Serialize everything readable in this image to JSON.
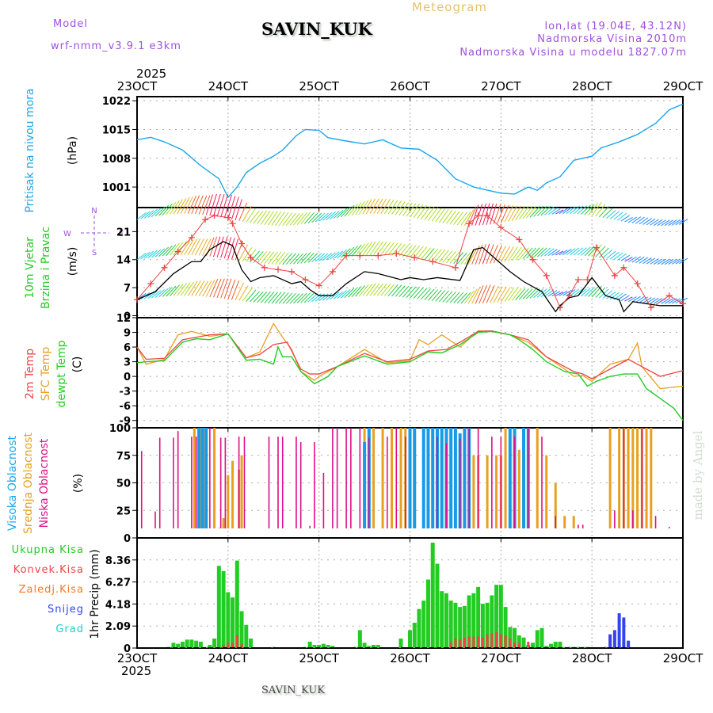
{
  "header": {
    "model_label": "Model",
    "model_name": "wrf-nmm_v3.9.1  e3km",
    "station": "SAVIN_KUK",
    "product": "Meteogram",
    "coords": "lon,lat (19.04E, 43.12N)",
    "elevation": "Nadmorska Visina 2010m",
    "model_elevation": "Nadmorska Visina u modelu 1827.07m",
    "year": "2025"
  },
  "footer": {
    "station": "SAVIN_KUK",
    "credit": "made by Angel"
  },
  "colors": {
    "pressure": "#1aa6ee",
    "temp2m": "#ee4444",
    "sfc": "#e8a020",
    "dewpt": "#22cc22",
    "purple": "#a050e0",
    "high_cloud": "#1a9ae6",
    "mid_cloud": "#e8a020",
    "low_cloud": "#dd1188",
    "rain": "#22cc22",
    "convective": "#ee4444",
    "freezing": "#ff7722",
    "snow": "#3344ee",
    "hail": "#22cccc"
  },
  "chart_data": [
    {
      "type": "line",
      "name": "pressure",
      "title": "Pritisak na nivou mora",
      "ylabel": "(hPa)",
      "x_ticks": [
        "23OCT",
        "24OCT",
        "25OCT",
        "26OCT",
        "27OCT",
        "28OCT",
        "29OCT"
      ],
      "xlim_days": [
        0,
        6
      ],
      "ylim": [
        996,
        1023
      ],
      "y_ticks": [
        1001,
        1008,
        1015,
        1022
      ],
      "grid": true,
      "series": [
        {
          "name": "Pritisak na nivou mora",
          "x": [
            0,
            0.15,
            0.3,
            0.5,
            0.7,
            0.9,
            1.0,
            1.1,
            1.2,
            1.35,
            1.5,
            1.6,
            1.75,
            1.85,
            2.0,
            2.1,
            2.3,
            2.5,
            2.7,
            2.9,
            3.1,
            3.3,
            3.5,
            3.7,
            3.9,
            4.0,
            4.15,
            4.3,
            4.4,
            4.5,
            4.65,
            4.8,
            5.0,
            5.1,
            5.3,
            5.5,
            5.7,
            5.85,
            6.0
          ],
          "values": [
            1012.5,
            1013.1,
            1012.0,
            1010.0,
            1006.2,
            1003.0,
            998.5,
            1001.0,
            1004.5,
            1006.8,
            1008.5,
            1010.0,
            1013.5,
            1015.0,
            1014.8,
            1013.0,
            1012.2,
            1011.5,
            1012.5,
            1010.5,
            1010.2,
            1007.5,
            1003.0,
            1001.0,
            1000.0,
            999.5,
            999.3,
            1001.0,
            1000.2,
            1002.0,
            1003.5,
            1007.5,
            1008.5,
            1010.5,
            1012.0,
            1013.8,
            1016.5,
            1019.8,
            1021.2
          ]
        }
      ]
    },
    {
      "type": "line",
      "name": "wind",
      "title": "10m Vjetar Brzina i Pravac",
      "ylabel": "(m/s)",
      "compass": {
        "n": "N",
        "s": "S",
        "e": "E",
        "w": "W"
      },
      "ylim": [
        -0.5,
        27
      ],
      "y_ticks": [
        0,
        7,
        14,
        21
      ],
      "grid": true,
      "series": [
        {
          "name": "wind speed",
          "x": [
            0,
            0.2,
            0.4,
            0.6,
            0.7,
            0.8,
            0.95,
            1.05,
            1.15,
            1.25,
            1.35,
            1.5,
            1.7,
            1.8,
            1.9,
            2.0,
            2.15,
            2.3,
            2.5,
            2.65,
            2.9,
            3.0,
            3.15,
            3.3,
            3.55,
            3.7,
            3.8,
            3.95,
            4.1,
            4.25,
            4.45,
            4.6,
            4.65,
            4.75,
            4.85,
            5.0,
            5.15,
            5.3,
            5.35,
            5.45,
            5.6,
            5.75,
            6.0
          ],
          "values": [
            4,
            6,
            10.5,
            13.5,
            13.5,
            16.5,
            18.5,
            17.5,
            11.5,
            8.5,
            9.5,
            10,
            8,
            8.5,
            6.5,
            5,
            5,
            8,
            11,
            10.5,
            9,
            9.5,
            9,
            9.5,
            8.8,
            16.5,
            17,
            14,
            11,
            8.5,
            6,
            1,
            2.5,
            4.5,
            5,
            9.5,
            5,
            4,
            1,
            3.5,
            3,
            2.5,
            2.5
          ]
        },
        {
          "name": "gust",
          "x": [
            0,
            0.15,
            0.3,
            0.45,
            0.6,
            0.75,
            0.85,
            1.0,
            1.05,
            1.15,
            1.25,
            1.4,
            1.55,
            1.7,
            1.85,
            2.0,
            2.15,
            2.3,
            2.45,
            2.65,
            2.85,
            3.05,
            3.25,
            3.5,
            3.65,
            3.75,
            3.85,
            4.0,
            4.2,
            4.35,
            4.5,
            4.65,
            4.75,
            4.85,
            4.95,
            5.05,
            5.25,
            5.35,
            5.5,
            5.65,
            5.85,
            6.0
          ],
          "values": [
            4,
            8,
            12,
            16,
            19.5,
            24,
            25,
            24.5,
            23,
            18,
            14.5,
            12,
            11.5,
            11,
            9,
            7.5,
            11,
            15,
            15,
            15,
            15.5,
            14.5,
            13.5,
            12,
            23,
            25,
            25,
            22,
            19,
            14,
            10,
            2,
            5,
            9,
            9,
            17,
            10,
            12,
            8,
            2,
            5,
            3
          ]
        }
      ],
      "barb_rows": [
        "upper (1000m)",
        "middle (10m)",
        "lower (surface)"
      ]
    },
    {
      "type": "line",
      "name": "temperature",
      "title": "2m Temp / SFC Temp / dewpt Temp",
      "ylabel": "(C)",
      "ylim": [
        -10.5,
        12
      ],
      "y_ticks": [
        12,
        9,
        6,
        3,
        0,
        -3,
        -6,
        -9
      ],
      "grid": true,
      "series": [
        {
          "name": "2m Temp",
          "x": [
            0,
            0.1,
            0.3,
            0.5,
            0.65,
            0.8,
            1.0,
            1.2,
            1.35,
            1.5,
            1.65,
            1.8,
            1.9,
            2.0,
            2.2,
            2.5,
            2.75,
            3.0,
            3.2,
            3.4,
            3.55,
            3.75,
            3.9,
            4.1,
            4.3,
            4.5,
            4.65,
            4.8,
            4.9,
            5.0,
            5.2,
            5.4,
            5.55,
            5.75,
            6.0
          ],
          "values": [
            6,
            3.5,
            3.7,
            7.5,
            8.0,
            8.5,
            8.7,
            3.8,
            4.5,
            6.5,
            7.0,
            1.5,
            0.5,
            0.5,
            2.0,
            4.7,
            3.0,
            3.5,
            5.2,
            5.5,
            7.0,
            9.2,
            9.3,
            8.5,
            7.5,
            4.0,
            2.5,
            1.0,
            0.5,
            -0.5,
            1.5,
            3.5,
            2.0,
            0,
            1.2
          ]
        },
        {
          "name": "SFC Temp",
          "x": [
            0,
            0.1,
            0.3,
            0.45,
            0.6,
            0.8,
            1.0,
            1.2,
            1.35,
            1.5,
            1.6,
            1.7,
            1.8,
            1.95,
            2.0,
            2.2,
            2.5,
            2.75,
            3.0,
            3.1,
            3.2,
            3.35,
            3.55,
            3.75,
            3.9,
            4.1,
            4.3,
            4.5,
            4.7,
            4.8,
            4.9,
            5.0,
            5.2,
            5.4,
            5.5,
            5.55,
            5.75,
            6.0
          ],
          "values": [
            6,
            2.5,
            3.5,
            8.5,
            9.2,
            8.2,
            8.7,
            3.8,
            5.0,
            10.8,
            8.0,
            5.5,
            1.0,
            -0.8,
            0,
            2.0,
            5.5,
            2.8,
            3.2,
            7.5,
            6.5,
            8.5,
            6.0,
            9.3,
            9.2,
            8.5,
            7.0,
            4.0,
            1.5,
            0,
            0.2,
            -1.0,
            2.5,
            3.5,
            6.8,
            2.0,
            -2.5,
            -2.0
          ]
        },
        {
          "name": "dewpt Temp",
          "x": [
            0,
            0.1,
            0.3,
            0.5,
            0.65,
            0.8,
            1.0,
            1.2,
            1.35,
            1.5,
            1.55,
            1.6,
            1.7,
            1.8,
            1.95,
            2.1,
            2.2,
            2.5,
            2.75,
            3.0,
            3.2,
            3.35,
            3.55,
            3.75,
            3.9,
            4.1,
            4.2,
            4.35,
            4.5,
            4.7,
            4.85,
            4.95,
            5.05,
            5.2,
            5.35,
            5.5,
            5.6,
            5.75,
            5.9,
            6.0
          ],
          "values": [
            2.8,
            3.0,
            3.2,
            7.0,
            7.7,
            7.5,
            8.7,
            3.3,
            3.5,
            2.5,
            6.0,
            4.0,
            4.0,
            1.0,
            -1.5,
            0,
            2.0,
            4.2,
            2.5,
            3.0,
            5.0,
            4.8,
            6.5,
            9.0,
            9.2,
            8.5,
            7.5,
            5.5,
            3.0,
            1.0,
            0.5,
            -2.0,
            -1.0,
            0,
            0.5,
            0.5,
            -2.5,
            -4.5,
            -6.5,
            -9.0
          ]
        }
      ]
    },
    {
      "type": "bar",
      "name": "cloud",
      "title": "Visoka / Srednja / Niska Oblacnost",
      "ylabel": "(%)",
      "ylim": [
        0,
        100
      ],
      "y_ticks": [
        0,
        25,
        50,
        75,
        100
      ],
      "grid": true,
      "series": [
        {
          "name": "Visoka Oblacnost",
          "x": [
            0.68,
            0.72,
            0.76,
            2.5,
            2.55,
            3.0,
            3.05,
            3.15,
            3.2,
            3.25,
            3.3,
            3.35,
            3.4,
            3.45,
            3.5,
            3.55,
            3.6,
            3.65,
            4.1,
            4.15,
            4.25,
            4.3
          ],
          "values": [
            100,
            100,
            100,
            87,
            100,
            100,
            100,
            100,
            100,
            100,
            100,
            100,
            100,
            100,
            100,
            95,
            100,
            100,
            100,
            100,
            100,
            100
          ]
        },
        {
          "name": "Srednja Oblacnost",
          "x": [
            0.63,
            0.7,
            0.75,
            0.85,
            0.9,
            0.95,
            1.0,
            1.05,
            1.12,
            1.15,
            2.5,
            2.55,
            2.6,
            2.7,
            2.8,
            2.9,
            2.95,
            3.05,
            3.15,
            3.25,
            3.35,
            3.45,
            3.7,
            3.75,
            3.85,
            3.95,
            4.0,
            4.05,
            4.2,
            4.3,
            4.4,
            4.5,
            4.6,
            4.7,
            4.8,
            5.2,
            5.3,
            5.35,
            5.4,
            5.45,
            5.5,
            5.55,
            5.6,
            5.65
          ],
          "values": [
            100,
            100,
            100,
            100,
            9,
            18,
            57,
            70,
            62,
            75,
            100,
            100,
            100,
            100,
            100,
            100,
            100,
            100,
            100,
            100,
            100,
            100,
            75,
            75,
            75,
            75,
            75,
            100,
            80,
            60,
            100,
            75,
            50,
            20,
            20,
            100,
            100,
            100,
            100,
            100,
            100,
            100,
            100,
            100
          ]
        },
        {
          "name": "Niska Oblacnost",
          "x": [
            0.05,
            0.2,
            0.25,
            0.4,
            0.45,
            0.6,
            0.65,
            0.8,
            0.92,
            0.97,
            1.12,
            1.18,
            1.4,
            1.45,
            1.55,
            1.6,
            1.75,
            1.8,
            1.9,
            1.95,
            2.05,
            2.15,
            2.2,
            2.3,
            2.35,
            2.45,
            2.55,
            2.75,
            2.85,
            2.95,
            3.3,
            3.4,
            3.55,
            3.65,
            3.75,
            3.9,
            4.0,
            4.15,
            4.3,
            4.45,
            4.6,
            4.85,
            4.9,
            5.25,
            5.35,
            5.45,
            5.55,
            5.7,
            5.85
          ],
          "values": [
            79,
            24,
            91,
            91,
            97,
            92,
            92,
            100,
            91,
            91,
            92,
            92,
            4,
            92,
            92,
            92,
            92,
            87,
            11,
            87,
            59,
            100,
            100,
            100,
            99,
            100,
            91,
            92,
            100,
            92,
            92,
            86,
            90,
            100,
            100,
            92,
            92,
            92,
            100,
            92,
            20,
            12,
            12,
            25,
            100,
            25,
            100,
            20,
            10
          ]
        }
      ]
    },
    {
      "type": "bar",
      "name": "precipitation",
      "title": "1hr Precip",
      "ylabel": "1hr Precip (mm)",
      "legend": [
        "Ukupna Kisa",
        "Konvek.Kisa",
        "Zaledj.Kisa",
        "Snijeg",
        "Grad"
      ],
      "ylim": [
        0,
        10.45
      ],
      "y_ticks": [
        0,
        2.09,
        4.18,
        6.27,
        8.36
      ],
      "grid": true,
      "series": [
        {
          "name": "Ukupna Kisa",
          "x": [
            0.35,
            0.4,
            0.45,
            0.5,
            0.55,
            0.6,
            0.65,
            0.7,
            0.75,
            0.8,
            0.85,
            0.9,
            0.95,
            1.0,
            1.05,
            1.1,
            1.15,
            1.2,
            1.25,
            1.5,
            1.85,
            1.9,
            1.95,
            2.0,
            2.05,
            2.1,
            2.15,
            2.4,
            2.45,
            2.5,
            2.55,
            2.6,
            2.65,
            2.9,
            3.0,
            3.05,
            3.1,
            3.15,
            3.2,
            3.25,
            3.3,
            3.35,
            3.4,
            3.45,
            3.5,
            3.55,
            3.6,
            3.65,
            3.7,
            3.75,
            3.8,
            3.85,
            3.9,
            3.95,
            4.0,
            4.05,
            4.1,
            4.15,
            4.2,
            4.25,
            4.3,
            4.35,
            4.4,
            4.45,
            4.5,
            4.55,
            4.6,
            4.65,
            4.7,
            4.75,
            4.8,
            4.85,
            4.9,
            4.95
          ],
          "values": [
            0.1,
            0.5,
            0.4,
            0.6,
            0.8,
            0.8,
            0.7,
            0.6,
            0.1,
            0.3,
            0.9,
            7.8,
            7.3,
            5.3,
            4.8,
            8.3,
            3.5,
            2.2,
            0.9,
            0.1,
            0.1,
            0.6,
            0.3,
            0.3,
            0.4,
            0.3,
            0.2,
            0.1,
            1.7,
            0.5,
            0.2,
            0.3,
            0.3,
            0.9,
            1.7,
            2.4,
            3.7,
            4.5,
            6.5,
            10.0,
            8.0,
            5.4,
            5.2,
            4.5,
            4.3,
            3.9,
            4.0,
            5.0,
            5.2,
            5.8,
            4.2,
            4.3,
            5.0,
            6.0,
            6.0,
            3.9,
            2.0,
            1.9,
            1.2,
            1.0,
            0.3,
            0.5,
            1.7,
            1.9,
            0.2,
            0.4,
            0.6,
            0.6,
            0.1,
            0.1,
            0.1,
            0.1,
            0.1,
            0.1
          ]
        },
        {
          "name": "Konvek.Kisa",
          "x": [
            0.95,
            1.0,
            1.05,
            1.1,
            1.15,
            3.45,
            3.5,
            3.55,
            3.6,
            3.65,
            3.7,
            3.75,
            3.8,
            3.85,
            3.9,
            3.95,
            4.0,
            4.05,
            4.1,
            4.15,
            4.2,
            4.3
          ],
          "values": [
            0.3,
            0.5,
            0.5,
            1.2,
            0.4,
            0.5,
            0.9,
            0.8,
            1.0,
            1.1,
            1.1,
            1.1,
            1.0,
            1.3,
            1.4,
            1.5,
            1.3,
            1.2,
            0.9,
            0.5,
            0.5,
            0.6
          ]
        },
        {
          "name": "Snijeg",
          "x": [
            5.15,
            5.2,
            5.25,
            5.3,
            5.35,
            5.4
          ],
          "values": [
            0.1,
            1.3,
            1.7,
            3.3,
            2.9,
            0.7
          ]
        }
      ]
    }
  ]
}
